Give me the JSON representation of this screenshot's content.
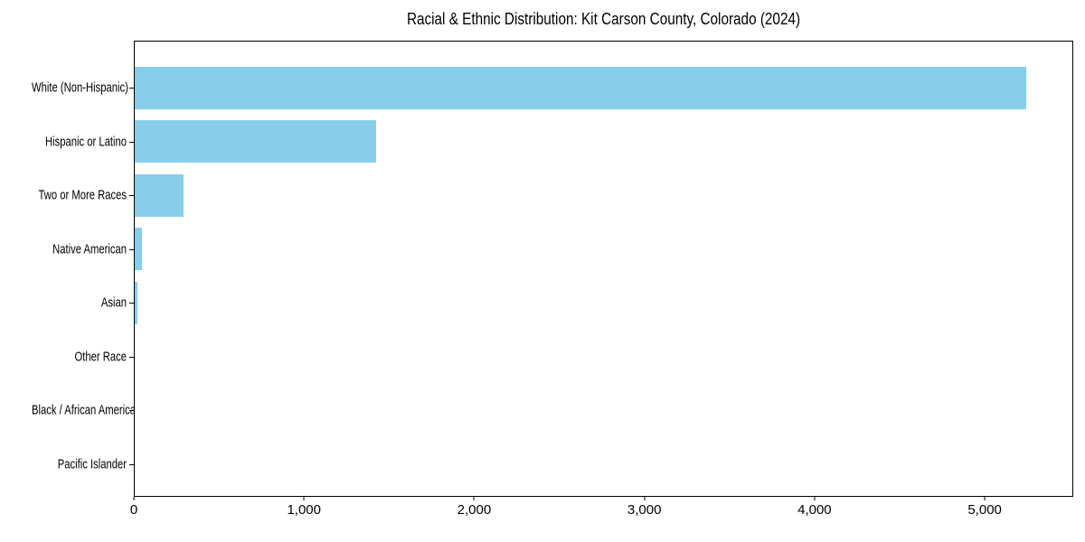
{
  "colors": {
    "bar": "#87CEEB",
    "axis": "#000000",
    "background": "#FFFFFF",
    "text": "#000000"
  },
  "chart_data": {
    "type": "bar",
    "orientation": "horizontal",
    "title": "Racial & Ethnic Distribution: Kit Carson County, Colorado (2024)",
    "categories": [
      "White (Non-Hispanic)",
      "Hispanic or Latino",
      "Two or More Races",
      "Native American",
      "Asian",
      "Other Race",
      "Black / African American",
      "Pacific Islander"
    ],
    "values": [
      5250,
      1420,
      285,
      45,
      15,
      0,
      0,
      0
    ],
    "xlabel": "",
    "ylabel": "",
    "xlim": [
      0,
      5520
    ],
    "x_ticks": [
      0,
      1000,
      2000,
      3000,
      4000,
      5000
    ],
    "x_tick_labels": [
      "0",
      "1,000",
      "2,000",
      "3,000",
      "4,000",
      "5,000"
    ],
    "bar_color": "#87CEEB",
    "grid": false,
    "legend": null
  }
}
